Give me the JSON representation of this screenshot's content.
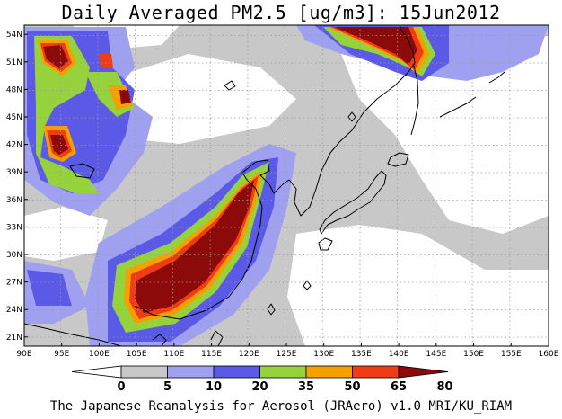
{
  "title": "Daily Averaged PM2.5 [ug/m3]: 15Jun2012",
  "credit": "The Japanese Reanalysis for Aerosol (JRAero) v1.0 MRI/KU_RIAM",
  "chart_data": {
    "type": "map",
    "variable": "PM2.5",
    "units": "ug/m3",
    "date": "15Jun2012",
    "lon_range": [
      90,
      160
    ],
    "lat_range": [
      20,
      55
    ],
    "x_tick_labels": [
      "90E",
      "95E",
      "100E",
      "105E",
      "110E",
      "115E",
      "120E",
      "125E",
      "130E",
      "135E",
      "140E",
      "145E",
      "150E",
      "155E",
      "160E"
    ],
    "y_tick_labels": [
      "21N",
      "24N",
      "27N",
      "30N",
      "33N",
      "36N",
      "39N",
      "42N",
      "45N",
      "48N",
      "51N",
      "54N"
    ],
    "grid": "dotted",
    "colorbar": {
      "levels": [
        "0",
        "5",
        "10",
        "20",
        "35",
        "50",
        "65",
        "80"
      ],
      "colors": [
        "#ffffff",
        "#c8c8c8",
        "#a0a0f0",
        "#5a5ae6",
        "#96d23c",
        "#f5a000",
        "#f03c14",
        "#8c0a0a"
      ]
    }
  }
}
